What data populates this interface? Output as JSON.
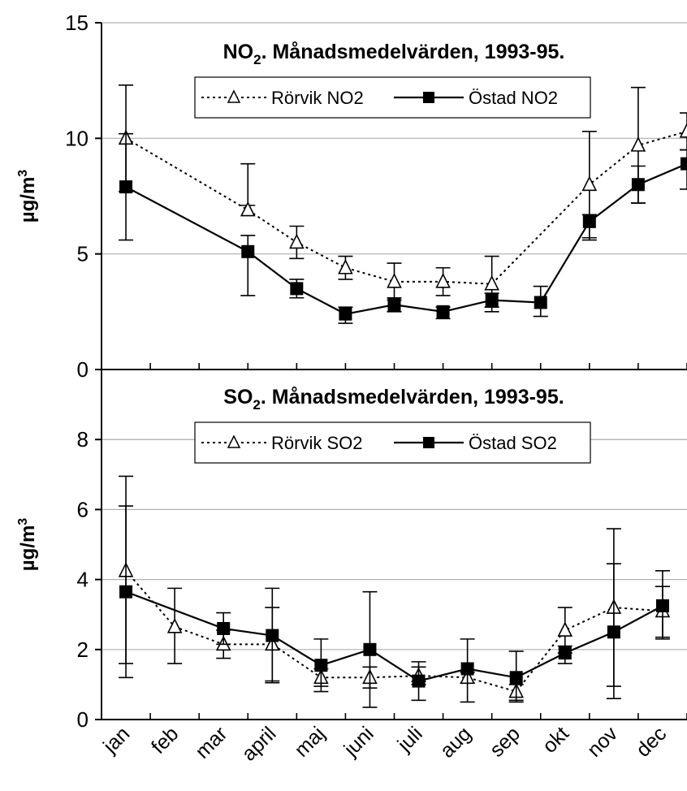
{
  "categories": [
    "jan",
    "feb",
    "mar",
    "april",
    "maj",
    "juni",
    "juli",
    "aug",
    "sep",
    "okt",
    "nov",
    "dec"
  ],
  "chart_data": [
    {
      "type": "line",
      "title_main": "NO",
      "title_sub": "2",
      "title_rest": ". Månadsmedelvärden, 1993-95.",
      "ylabel_main": "µg/m",
      "ylabel_sup": "3",
      "ylim": [
        0,
        15
      ],
      "yticks": [
        "0",
        "5",
        "10",
        "15"
      ],
      "grid": true,
      "legend_position": "top-center",
      "series": [
        {
          "name": "Rörvik NO2",
          "marker": "open-triangle",
          "line_style": "dotted",
          "x": [
            1,
            3.5,
            4.5,
            5.5,
            6.5,
            7.5,
            8.5,
            10.5,
            11.5,
            12.5
          ],
          "y": [
            10.0,
            6.9,
            5.5,
            4.4,
            3.8,
            3.8,
            3.7,
            8.0,
            9.7,
            10.3
          ],
          "err_high": [
            12.3,
            8.9,
            6.2,
            4.9,
            4.6,
            4.4,
            4.9,
            10.3,
            12.2,
            11.1
          ],
          "err_low": [
            7.7,
            7.1,
            4.8,
            3.9,
            3.1,
            3.2,
            2.5,
            5.7,
            7.2,
            9.5
          ]
        },
        {
          "name": "Östad NO2",
          "marker": "filled-square",
          "line_style": "solid",
          "x": [
            1,
            3.5,
            4.5,
            5.5,
            6.5,
            7.5,
            8.5,
            9.5,
            10.5,
            11.5,
            12.5
          ],
          "y": [
            7.9,
            5.1,
            3.5,
            2.4,
            2.8,
            2.5,
            3.0,
            2.9,
            6.4,
            8.0,
            8.9
          ],
          "err_high": [
            10.2,
            5.8,
            3.9,
            2.7,
            3.0,
            2.7,
            3.3,
            3.6,
            6.7,
            8.8,
            9.5
          ],
          "err_low": [
            5.6,
            3.2,
            3.1,
            2.0,
            2.5,
            2.2,
            2.7,
            2.3,
            5.6,
            7.2,
            7.8
          ]
        }
      ]
    },
    {
      "type": "line",
      "title_main": "SO",
      "title_sub": "2",
      "title_rest": ". Månadsmedelvärden, 1993-95.",
      "ylabel_main": "µg/m",
      "ylabel_sup": "3",
      "ylim": [
        0,
        10
      ],
      "yticks": [
        "0",
        "2",
        "4",
        "6",
        "8"
      ],
      "grid": true,
      "legend_position": "top-center",
      "series": [
        {
          "name": "Rörvik SO2",
          "marker": "open-triangle",
          "line_style": "dotted",
          "x": [
            1,
            2,
            3,
            4,
            5,
            6,
            7,
            8,
            9,
            10,
            11,
            12
          ],
          "y": [
            4.25,
            2.65,
            2.15,
            2.15,
            1.2,
            1.2,
            1.25,
            1.2,
            0.8,
            2.55,
            3.2,
            3.1
          ],
          "err_high": [
            6.1,
            3.75,
            2.55,
            3.2,
            1.45,
            1.5,
            1.5,
            1.35,
            1.0,
            3.2,
            5.45,
            3.8
          ],
          "err_low": [
            1.6,
            1.6,
            1.75,
            1.1,
            0.95,
            0.9,
            1.0,
            1.05,
            0.55,
            1.9,
            0.95,
            2.35
          ]
        },
        {
          "name": "Östad SO2",
          "marker": "filled-square",
          "line_style": "solid",
          "x": [
            1,
            3,
            4,
            5,
            6,
            7,
            8,
            9,
            10,
            11,
            12
          ],
          "y": [
            3.65,
            2.6,
            2.4,
            1.55,
            2.0,
            1.1,
            1.45,
            1.2,
            1.9,
            2.5,
            3.25
          ],
          "err_high": [
            6.95,
            3.05,
            3.75,
            2.3,
            3.65,
            1.65,
            2.3,
            1.95,
            2.1,
            4.45,
            4.25
          ],
          "err_low": [
            1.2,
            2.15,
            1.05,
            0.8,
            0.35,
            0.55,
            0.5,
            0.5,
            1.6,
            0.6,
            2.3
          ]
        }
      ]
    }
  ]
}
